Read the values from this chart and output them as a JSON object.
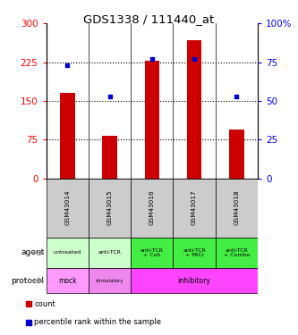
{
  "title": "GDS1338 / 111440_at",
  "samples": [
    "GSM43014",
    "GSM43015",
    "GSM43016",
    "GSM43017",
    "GSM43018"
  ],
  "counts": [
    165,
    82,
    228,
    268,
    95
  ],
  "percentiles": [
    73,
    53,
    77,
    77,
    53
  ],
  "ylim_left": [
    0,
    300
  ],
  "ylim_right": [
    0,
    100
  ],
  "yticks_left": [
    0,
    75,
    150,
    225,
    300
  ],
  "ytick_labels_left": [
    "0",
    "75",
    "150",
    "225",
    "300"
  ],
  "yticks_right": [
    0,
    25,
    50,
    75,
    100
  ],
  "ytick_labels_right": [
    "0",
    "25",
    "50",
    "75",
    "100%"
  ],
  "bar_color": "#cc0000",
  "scatter_color": "#0000cc",
  "agent_row": [
    "untreated",
    "anti-TCR",
    "anti-TCR\n+ CsA",
    "anti-TCR\n+ PKCi",
    "anti-TCR\n+ Combo"
  ],
  "agent_colors": [
    "#ccffcc",
    "#ccffcc",
    "#44ee44",
    "#44ee44",
    "#44ee44"
  ],
  "sample_bg_color": "#cccccc",
  "mock_color": "#ff99ff",
  "stimulatory_color": "#ee88ee",
  "inhibitory_color": "#ff44ff"
}
